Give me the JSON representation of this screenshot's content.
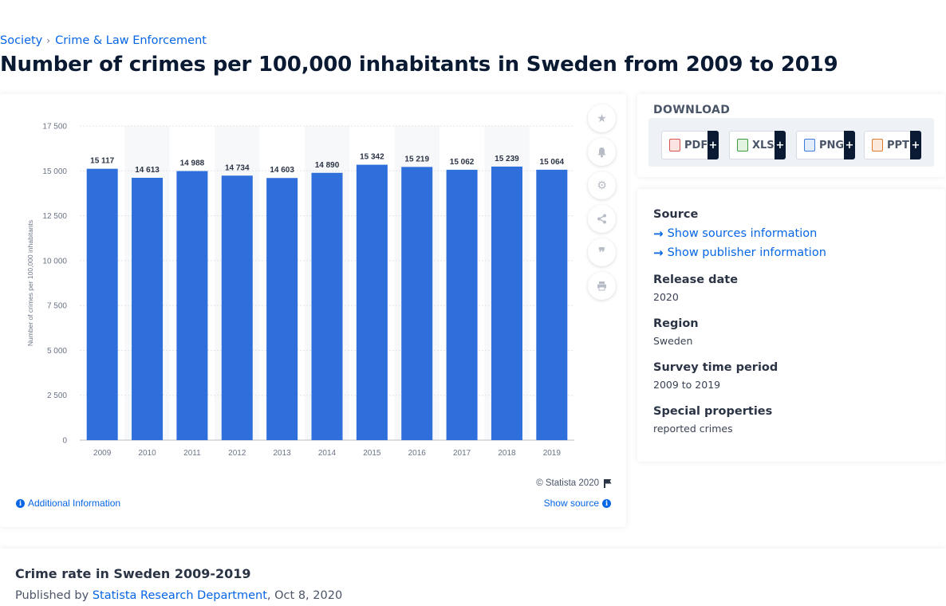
{
  "breadcrumb": {
    "item1": "Society",
    "item2": "Crime & Law Enforcement"
  },
  "page_title": "Number of crimes per 100,000 inhabitants in Sweden from 2009 to 2019",
  "chart_data": {
    "type": "bar",
    "categories": [
      "2009",
      "2010",
      "2011",
      "2012",
      "2013",
      "2014",
      "2015",
      "2016",
      "2017",
      "2018",
      "2019"
    ],
    "values": [
      15117,
      14613,
      14988,
      14734,
      14603,
      14890,
      15342,
      15219,
      15062,
      15239,
      15064
    ],
    "value_labels": [
      "15 117",
      "14 613",
      "14 988",
      "14 734",
      "14 603",
      "14 890",
      "15 342",
      "15 219",
      "15 062",
      "15 239",
      "15 064"
    ],
    "ylabel": "Number of crimes per 100,000 inhabitants",
    "ylim": [
      0,
      17500
    ],
    "yticks": [
      0,
      2500,
      5000,
      7500,
      10000,
      12500,
      15000,
      17500
    ],
    "ytick_labels": [
      "0",
      "2 500",
      "5 000",
      "7 500",
      "10 000",
      "12 500",
      "15 000",
      "17 500"
    ],
    "bar_color": "#2f6fdb",
    "grid": true
  },
  "chart_footer": {
    "copyright": "© Statista 2020",
    "additional_info": "Additional Information",
    "show_source": "Show source"
  },
  "download": {
    "title": "DOWNLOAD",
    "buttons": [
      {
        "label": "PDF",
        "icon": "pdf-file-icon",
        "color": "#d9534f"
      },
      {
        "label": "XLS",
        "icon": "xls-file-icon",
        "color": "#3c9a3c"
      },
      {
        "label": "PNG",
        "icon": "png-file-icon",
        "color": "#3d7be0"
      },
      {
        "label": "PPT",
        "icon": "ppt-file-icon",
        "color": "#e07a2e"
      }
    ],
    "plus": "+"
  },
  "info": {
    "source_label": "Source",
    "sources_link": "Show sources information",
    "publisher_link": "Show publisher information",
    "release_date_label": "Release date",
    "release_date": "2020",
    "region_label": "Region",
    "region": "Sweden",
    "survey_period_label": "Survey time period",
    "survey_period": "2009 to 2019",
    "special_label": "Special properties",
    "special": "reported crimes"
  },
  "description": {
    "title": "Crime rate in Sweden 2009-2019",
    "published_by": "Published by",
    "publisher": "Statista Research Department",
    "date": ", Oct 8, 2020"
  }
}
